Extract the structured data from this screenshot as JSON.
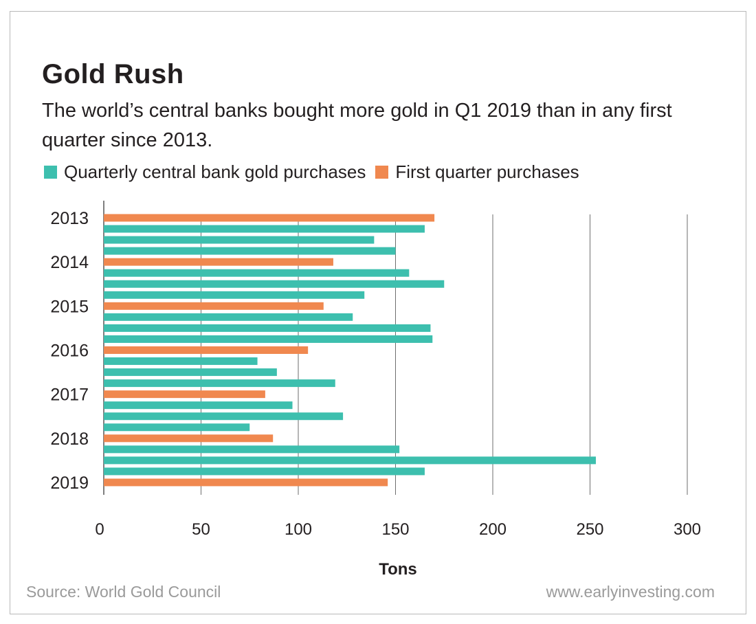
{
  "header": {
    "title": "Gold Rush",
    "subtitle": "The world’s central banks bought more gold in Q1 2019 than in any first quarter since 2013."
  },
  "legend": [
    {
      "label": "Quarterly central bank gold purchases",
      "color": "#3dbfae"
    },
    {
      "label": "First quarter purchases",
      "color": "#f0884f"
    }
  ],
  "footer": {
    "source": "Source: World Gold Council",
    "site": "www.earlyinvesting.com"
  },
  "chart_data": {
    "type": "bar",
    "orientation": "horizontal",
    "xlabel": "Tons",
    "ylabel": "",
    "xlim": [
      0,
      300
    ],
    "xticks": [
      0,
      50,
      100,
      150,
      200,
      250,
      300
    ],
    "grid": true,
    "legend_position": "top-left",
    "year_labels": [
      "2013",
      "2014",
      "2015",
      "2016",
      "2017",
      "2018",
      "2019"
    ],
    "series": [
      {
        "name": "Quarterly central bank gold purchases",
        "color": "#3dbfae"
      },
      {
        "name": "First quarter purchases",
        "color": "#f0884f"
      }
    ],
    "bars": [
      {
        "period": "2013 Q1",
        "series": "First quarter purchases",
        "value": 170
      },
      {
        "period": "2013 Q2",
        "series": "Quarterly central bank gold purchases",
        "value": 165
      },
      {
        "period": "2013 Q3",
        "series": "Quarterly central bank gold purchases",
        "value": 139
      },
      {
        "period": "2013 Q4",
        "series": "Quarterly central bank gold purchases",
        "value": 150
      },
      {
        "period": "2014 Q1",
        "series": "First quarter purchases",
        "value": 118
      },
      {
        "period": "2014 Q2",
        "series": "Quarterly central bank gold purchases",
        "value": 157
      },
      {
        "period": "2014 Q3",
        "series": "Quarterly central bank gold purchases",
        "value": 175
      },
      {
        "period": "2014 Q4",
        "series": "Quarterly central bank gold purchases",
        "value": 134
      },
      {
        "period": "2015 Q1",
        "series": "First quarter purchases",
        "value": 113
      },
      {
        "period": "2015 Q2",
        "series": "Quarterly central bank gold purchases",
        "value": 128
      },
      {
        "period": "2015 Q3",
        "series": "Quarterly central bank gold purchases",
        "value": 168
      },
      {
        "period": "2015 Q4",
        "series": "Quarterly central bank gold purchases",
        "value": 169
      },
      {
        "period": "2016 Q1",
        "series": "First quarter purchases",
        "value": 105
      },
      {
        "period": "2016 Q2",
        "series": "Quarterly central bank gold purchases",
        "value": 79
      },
      {
        "period": "2016 Q3",
        "series": "Quarterly central bank gold purchases",
        "value": 89
      },
      {
        "period": "2016 Q4",
        "series": "Quarterly central bank gold purchases",
        "value": 119
      },
      {
        "period": "2017 Q1",
        "series": "First quarter purchases",
        "value": 83
      },
      {
        "period": "2017 Q2",
        "series": "Quarterly central bank gold purchases",
        "value": 97
      },
      {
        "period": "2017 Q3",
        "series": "Quarterly central bank gold purchases",
        "value": 123
      },
      {
        "period": "2017 Q4",
        "series": "Quarterly central bank gold purchases",
        "value": 75
      },
      {
        "period": "2018 Q1",
        "series": "First quarter purchases",
        "value": 87
      },
      {
        "period": "2018 Q2",
        "series": "Quarterly central bank gold purchases",
        "value": 152
      },
      {
        "period": "2018 Q3",
        "series": "Quarterly central bank gold purchases",
        "value": 253
      },
      {
        "period": "2018 Q4",
        "series": "Quarterly central bank gold purchases",
        "value": 165
      },
      {
        "period": "2019 Q1",
        "series": "First quarter purchases",
        "value": 146
      }
    ]
  }
}
